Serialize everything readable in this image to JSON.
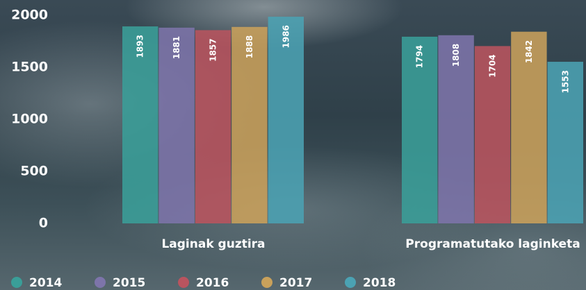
{
  "chart_data": {
    "type": "bar",
    "categories": [
      "Laginak guztira",
      "Programatutako laginketa"
    ],
    "series": [
      {
        "name": "2014",
        "color": "#3a9e98",
        "values": [
          1893,
          1794
        ]
      },
      {
        "name": "2015",
        "color": "#7d74aa",
        "values": [
          1881,
          1808
        ]
      },
      {
        "name": "2016",
        "color": "#b9545f",
        "values": [
          1857,
          1704
        ]
      },
      {
        "name": "2017",
        "color": "#c9a15b",
        "values": [
          1888,
          1842
        ]
      },
      {
        "name": "2018",
        "color": "#4ba2b3",
        "values": [
          1986,
          1553
        ]
      }
    ],
    "ylim": [
      0,
      2000
    ],
    "yticks": [
      0,
      500,
      1000,
      1500,
      2000
    ],
    "grid": false,
    "legend": "bottom"
  }
}
